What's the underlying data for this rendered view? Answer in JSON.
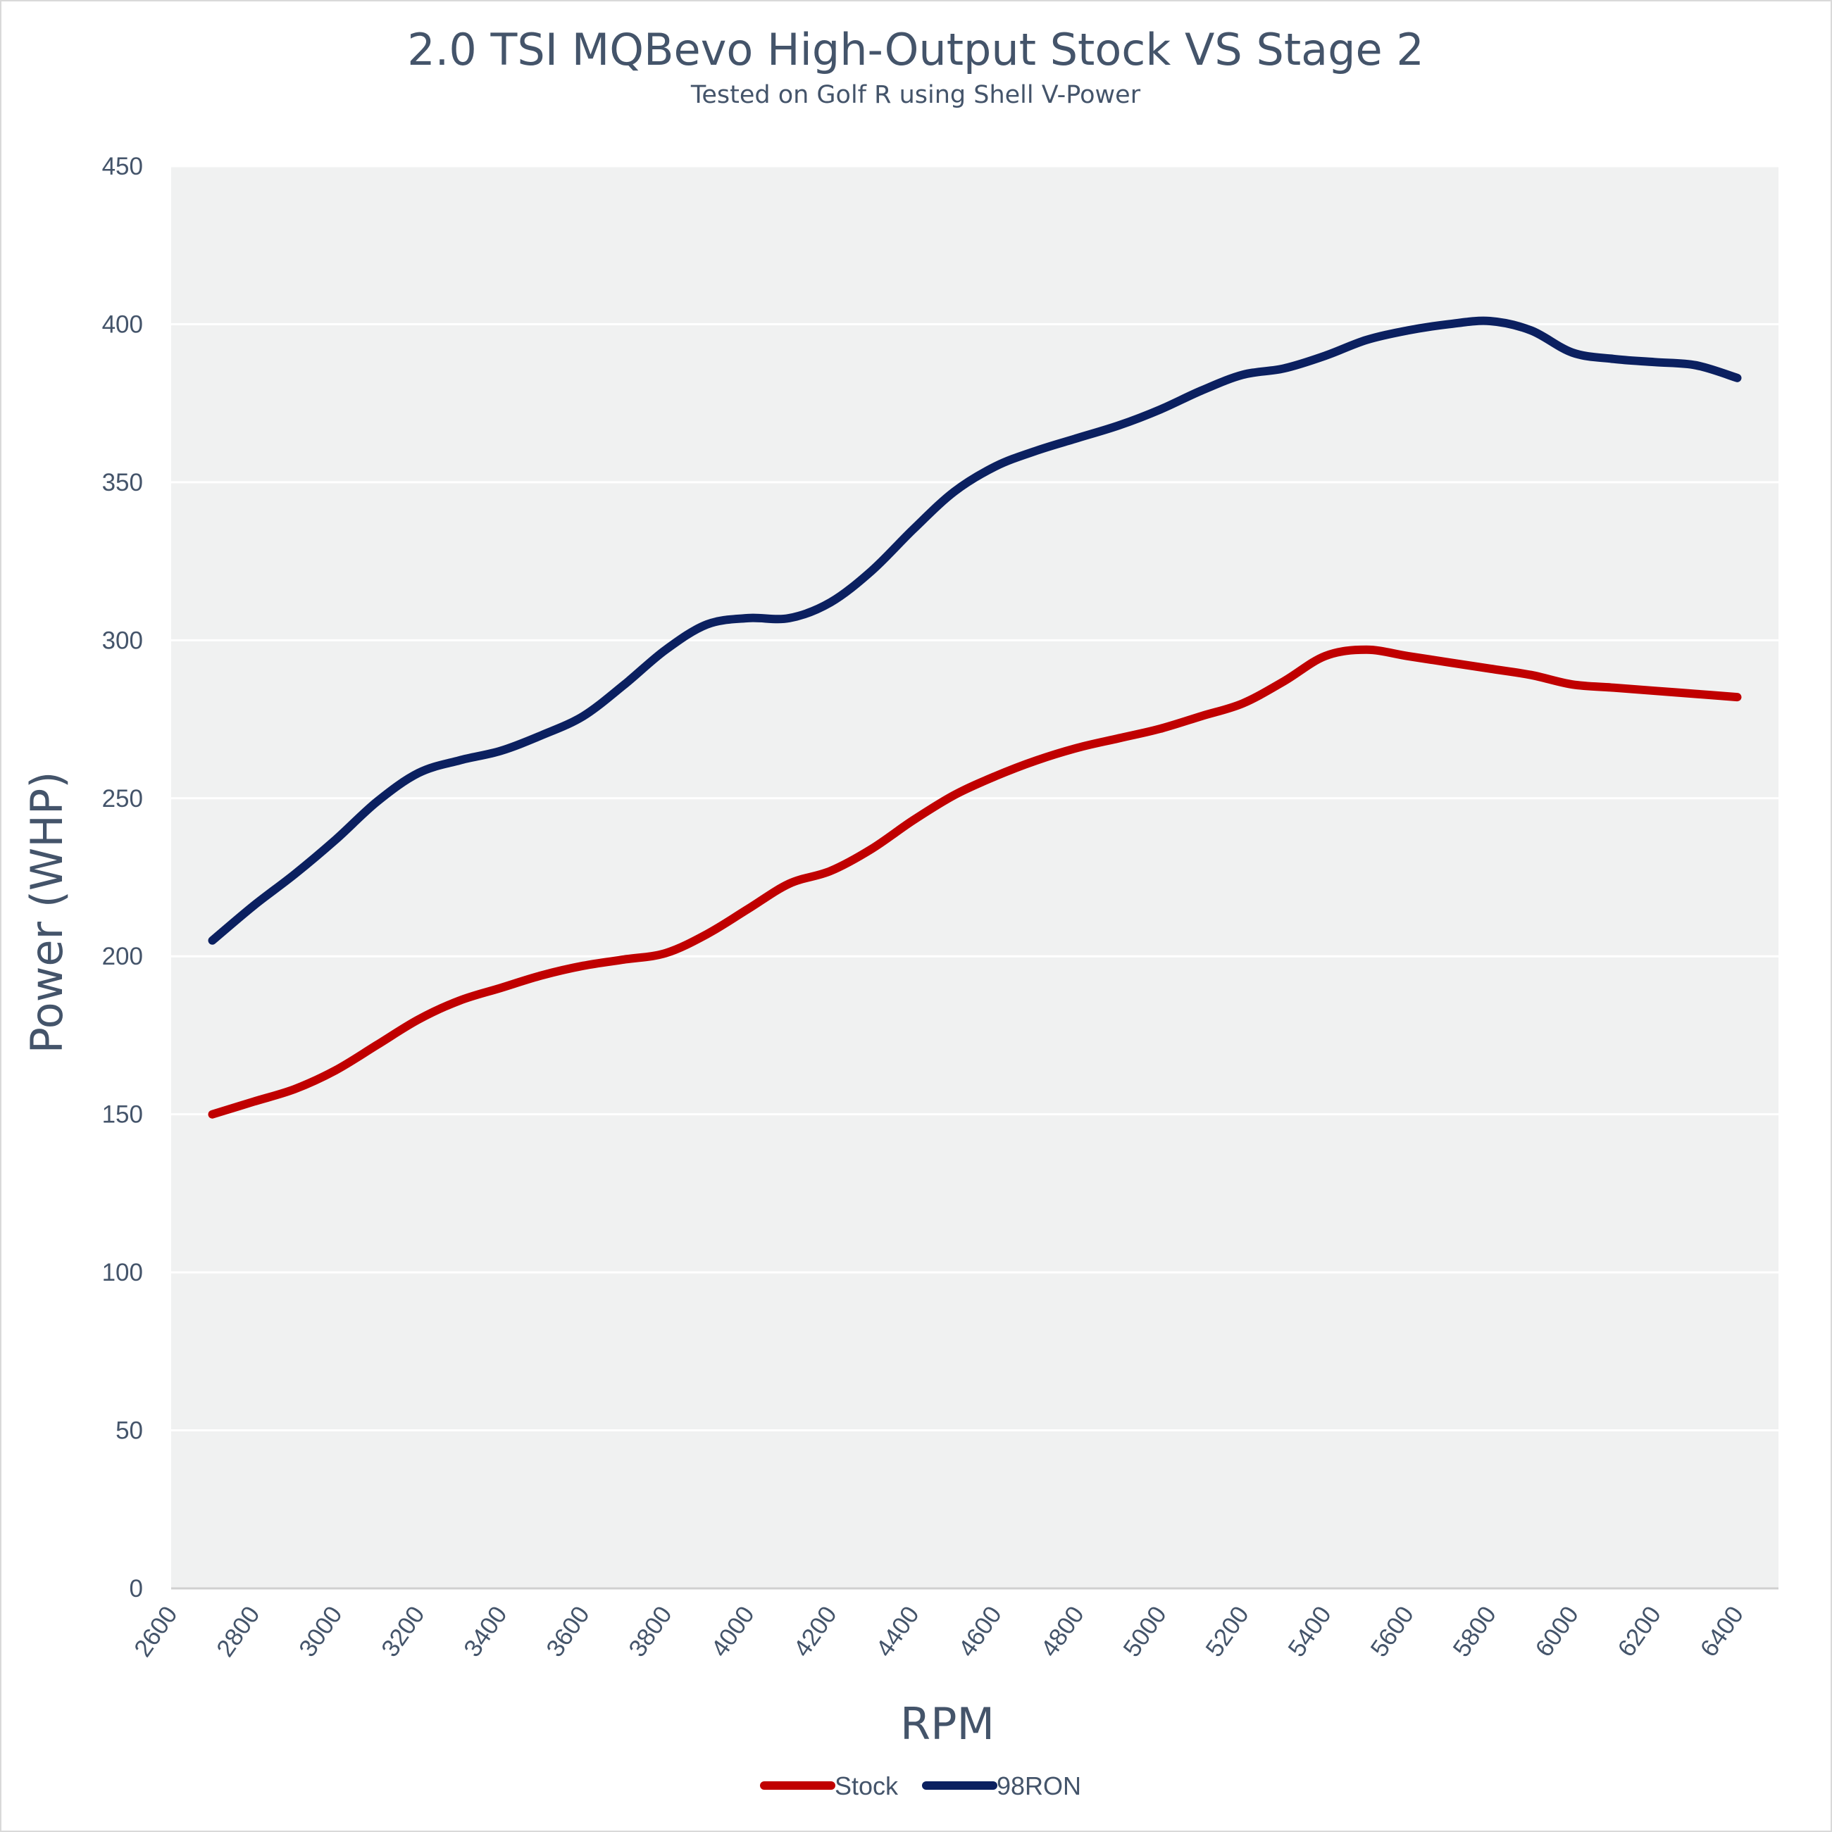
{
  "chart_data": {
    "type": "line",
    "title": "2.0 TSI MQBevo High-Output Stock VS Stage 2",
    "subtitle": "Tested on Golf R using Shell V-Power",
    "xlabel": "RPM",
    "ylabel": "Power (WHP)",
    "xlim": [
      2600,
      6500
    ],
    "ylim": [
      0,
      450
    ],
    "x_ticks": [
      "2600",
      "2800",
      "3000",
      "3200",
      "3400",
      "3600",
      "3800",
      "4000",
      "4200",
      "4400",
      "4600",
      "4800",
      "5000",
      "5200",
      "5400",
      "5600",
      "5800",
      "6000",
      "6200",
      "6400"
    ],
    "y_ticks": [
      "0",
      "50",
      "100",
      "150",
      "200",
      "250",
      "300",
      "350",
      "400",
      "450"
    ],
    "grid": "horizontal",
    "legend_position": "bottom",
    "x": [
      2700,
      2800,
      2900,
      3000,
      3100,
      3200,
      3300,
      3400,
      3500,
      3600,
      3700,
      3800,
      3900,
      4000,
      4100,
      4200,
      4300,
      4400,
      4500,
      4600,
      4700,
      4800,
      4900,
      5000,
      5100,
      5200,
      5300,
      5400,
      5500,
      5600,
      5700,
      5800,
      5900,
      6000,
      6100,
      6200,
      6300,
      6400
    ],
    "series": [
      {
        "name": "Stock",
        "color": "#c00000",
        "values": [
          150,
          154,
          158,
          164,
          172,
          180,
          186,
          190,
          194,
          197,
          199,
          201,
          207,
          215,
          223,
          227,
          234,
          243,
          251,
          257,
          262,
          266,
          269,
          272,
          276,
          280,
          287,
          295,
          297,
          295,
          293,
          291,
          289,
          286,
          285,
          284,
          283,
          282
        ]
      },
      {
        "name": "98RON",
        "color": "#0b2060",
        "values": [
          205,
          216,
          226,
          237,
          249,
          258,
          262,
          265,
          270,
          276,
          286,
          297,
          305,
          307,
          307,
          312,
          322,
          335,
          347,
          355,
          360,
          364,
          368,
          373,
          379,
          384,
          386,
          390,
          395,
          398,
          400,
          401,
          398,
          391,
          389,
          388,
          387,
          383
        ]
      }
    ]
  }
}
